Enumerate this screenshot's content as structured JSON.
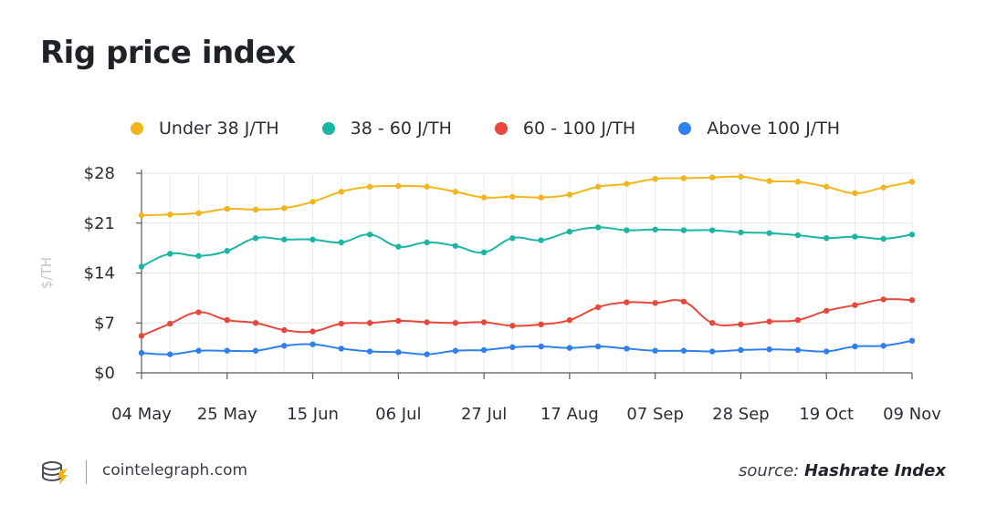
{
  "title": "Rig price index",
  "footer": {
    "site": "cointelegraph.com",
    "source_label": "source:",
    "source_name": "Hashrate Index"
  },
  "chart_data": {
    "type": "line",
    "title": "Rig price index",
    "ylabel": "$/TH",
    "xlabel": "",
    "ylim": [
      0,
      28
    ],
    "yticks": [
      0,
      7,
      14,
      21,
      28
    ],
    "ytick_labels": [
      "$0",
      "$7",
      "$14",
      "$21",
      "$28"
    ],
    "xtick_labels": [
      "04 May",
      "25 May",
      "15 Jun",
      "06 Jul",
      "27 Jul",
      "17 Aug",
      "07 Sep",
      "28 Sep",
      "19 Oct",
      "09 Nov"
    ],
    "grid": true,
    "legend_position": "top",
    "series": [
      {
        "name": "Under 38 J/TH",
        "color": "#f2b51c",
        "values": [
          22.1,
          22.2,
          22.4,
          23.0,
          22.9,
          23.1,
          24.0,
          25.4,
          26.1,
          26.2,
          26.1,
          25.4,
          24.6,
          24.7,
          24.6,
          25.0,
          26.1,
          26.5,
          27.2,
          27.3,
          27.4,
          27.5,
          26.9,
          26.8,
          26.1,
          25.2,
          26.0,
          26.8
        ]
      },
      {
        "name": "38 - 60 J/TH",
        "color": "#1bb5a4",
        "values": [
          14.9,
          16.7,
          16.4,
          17.1,
          18.9,
          18.7,
          18.7,
          18.3,
          19.4,
          17.7,
          18.3,
          17.8,
          16.9,
          18.9,
          18.6,
          19.8,
          20.4,
          20.0,
          20.1,
          20.0,
          20.0,
          19.7,
          19.6,
          19.3,
          18.9,
          19.1,
          18.8,
          19.4
        ]
      },
      {
        "name": "60 - 100 J/TH",
        "color": "#e8483c",
        "values": [
          5.2,
          6.9,
          8.5,
          7.4,
          7.0,
          6.0,
          5.8,
          6.9,
          7.0,
          7.3,
          7.1,
          7.0,
          7.1,
          6.6,
          6.8,
          7.4,
          9.2,
          9.9,
          9.8,
          10.0,
          7.0,
          6.8,
          7.2,
          7.4,
          8.7,
          9.5,
          10.3,
          10.2
        ]
      },
      {
        "name": "Above 100 J/TH",
        "color": "#2f80ed",
        "values": [
          2.8,
          2.6,
          3.1,
          3.1,
          3.1,
          3.8,
          4.0,
          3.4,
          3.0,
          2.9,
          2.6,
          3.1,
          3.2,
          3.6,
          3.7,
          3.5,
          3.7,
          3.4,
          3.1,
          3.1,
          3.0,
          3.2,
          3.3,
          3.2,
          3.0,
          3.7,
          3.8,
          4.5
        ]
      }
    ]
  }
}
